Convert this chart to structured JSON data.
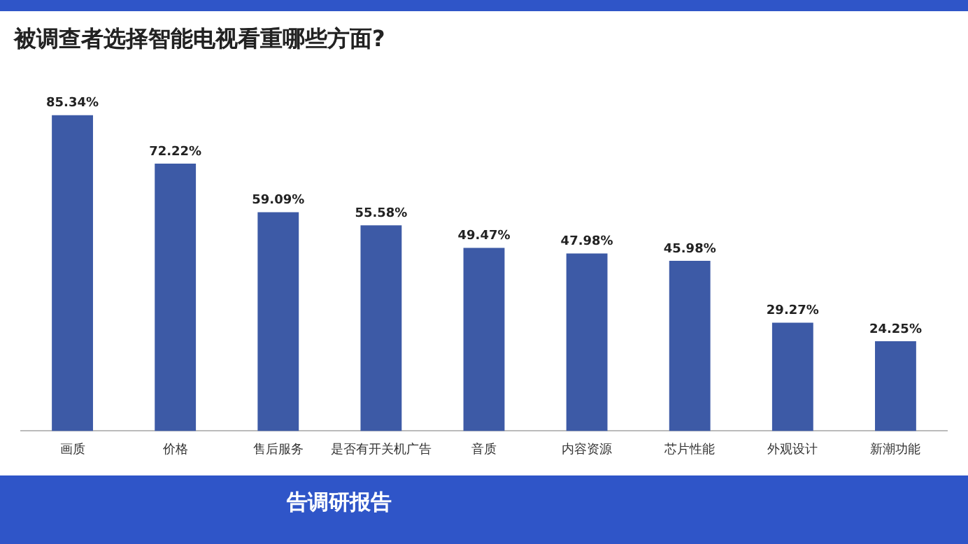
{
  "chart_data": {
    "type": "bar",
    "title": "被调查者选择智能电视看重哪些方面?",
    "categories": [
      "画质",
      "价格",
      "售后服务",
      "是否有开关机广告",
      "音质",
      "内容资源",
      "芯片性能",
      "外观设计",
      "新潮功能"
    ],
    "values": [
      85.34,
      72.22,
      59.09,
      55.58,
      49.47,
      47.98,
      45.98,
      29.27,
      24.25
    ],
    "value_labels": [
      "85.34%",
      "72.22%",
      "59.09%",
      "55.58%",
      "49.47%",
      "47.98%",
      "45.98%",
      "29.27%",
      "24.25%"
    ],
    "color": "#3d5aa6",
    "tick_labels": "x",
    "grid": false,
    "annotations": [
      "告调研报告"
    ]
  }
}
